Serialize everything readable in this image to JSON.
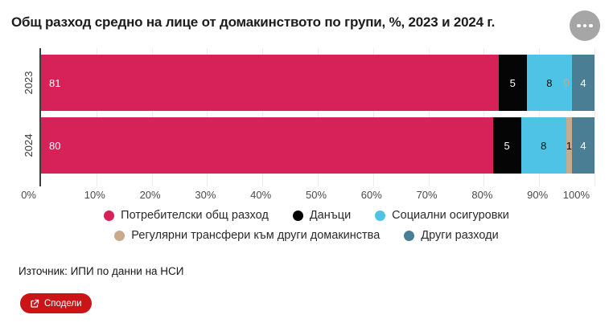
{
  "header": {
    "title": "Общ разход средно на лице от домакинството по групи, %, 2023 и 2024 г."
  },
  "chart_data": {
    "type": "bar",
    "variant": "stacked-horizontal",
    "categories": [
      "2023",
      "2024"
    ],
    "series": [
      {
        "name": "Потребителски общ разход",
        "color": "#d72159",
        "values": [
          81,
          80
        ]
      },
      {
        "name": "Данъци",
        "color": "#050505",
        "values": [
          5,
          5
        ]
      },
      {
        "name": "Социални осигуровки",
        "color": "#4ec3e6",
        "values": [
          8,
          8
        ]
      },
      {
        "name": "Регулярни трансфери към други домакинства",
        "color": "#c8aa8c",
        "values": [
          0,
          1
        ]
      },
      {
        "name": "Други разходи",
        "color": "#4a7e95",
        "values": [
          4,
          4
        ]
      }
    ],
    "xlim": [
      0,
      100
    ],
    "x_tick_labels": [
      "0%",
      "10%",
      "20%",
      "30%",
      "40%",
      "50%",
      "60%",
      "70%",
      "80%",
      "90%",
      "100%"
    ],
    "grid": true,
    "legend_position": "bottom"
  },
  "footer": {
    "source": "Източник: ИПИ по данни на НСИ",
    "share_button": {
      "label": "Сподели",
      "icon": "share-icon",
      "color": "#cb1417"
    }
  },
  "menu_button": {
    "icon": "ellipsis-icon"
  }
}
